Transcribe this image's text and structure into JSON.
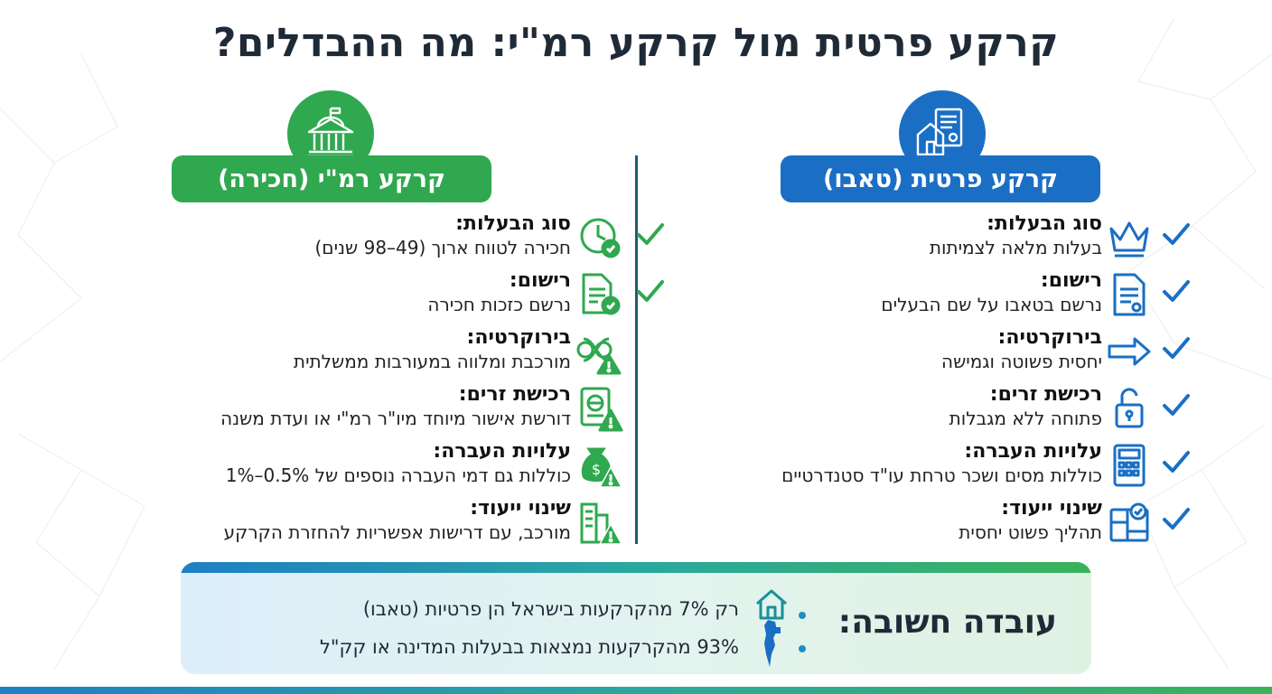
{
  "title": "קרקע פרטית מול קרקע רמ\"י: מה ההבדלים?",
  "private": {
    "heading": "קרקע פרטית (טאבו)",
    "header_icon": "house-deed-icon",
    "color": "#1a6fc4",
    "rows": [
      {
        "label": "סוג הבעלות:",
        "desc": "בעלות מלאה לצמיתות",
        "icon": "crown-icon",
        "check": "check-icon"
      },
      {
        "label": "רישום:",
        "desc": "נרשם בטאבו על שם הבעלים",
        "icon": "document-seal-icon",
        "check": "check-icon"
      },
      {
        "label": "בירוקרטיה:",
        "desc": "יחסית פשוטה וגמישה",
        "icon": "arrow-right-icon",
        "check": "check-icon"
      },
      {
        "label": "רכישת זרים:",
        "desc": "פתוחה ללא מגבלות",
        "icon": "unlocked-padlock-icon",
        "check": "check-icon"
      },
      {
        "label": "עלויות העברה:",
        "desc": "כוללות מסים ושכר טרחת עו\"ד סטנדרטיים",
        "icon": "calculator-icon",
        "check": "check-icon"
      },
      {
        "label": "שינוי ייעוד:",
        "desc": "תהליך פשוט יחסית",
        "icon": "blueprint-check-icon",
        "check": "check-icon"
      }
    ]
  },
  "rmi": {
    "heading": "קרקע רמ\"י (חכירה)",
    "header_icon": "government-building-icon",
    "color": "#2fa84f",
    "rows": [
      {
        "label": "סוג הבעלות:",
        "desc": "חכירה לטווח ארוך (49–98 שנים)",
        "icon": "clock-check-icon",
        "check": "check-icon"
      },
      {
        "label": "רישום:",
        "desc": "נרשם כזכות חכירה",
        "icon": "document-check-icon",
        "check": "check-icon"
      },
      {
        "label": "בירוקרטיה:",
        "desc": "מורכבת ומלווה במעורבות ממשלתית",
        "icon": "tangled-warning-icon"
      },
      {
        "label": "רכישת זרים:",
        "desc": "דורשת אישור מיוחד מיו\"ר רמ\"י או ועדת משנה",
        "icon": "passport-warning-icon"
      },
      {
        "label": "עלויות העברה:",
        "desc": "כוללות גם דמי העברה נוספים של 0.5%–1%",
        "icon": "money-bag-warning-icon"
      },
      {
        "label": "שינוי ייעוד:",
        "desc": "מורכב, עם דרישות אפשריות להחזרת הקרקע",
        "icon": "buildings-warning-icon"
      }
    ]
  },
  "fact": {
    "title": "עובדה חשובה:",
    "items": [
      {
        "text": "רק 7% מהקרקעות בישראל הן פרטיות (טאבו)",
        "icon": "house-icon"
      },
      {
        "text": "93% מהקרקעות נמצאות בבעלות המדינה או קק\"ל",
        "icon": "israel-map-icon"
      }
    ]
  },
  "colors": {
    "blue": "#1a6fc4",
    "green": "#2fa84f",
    "warning": "#2fa84f",
    "text": "#1f2a37"
  }
}
